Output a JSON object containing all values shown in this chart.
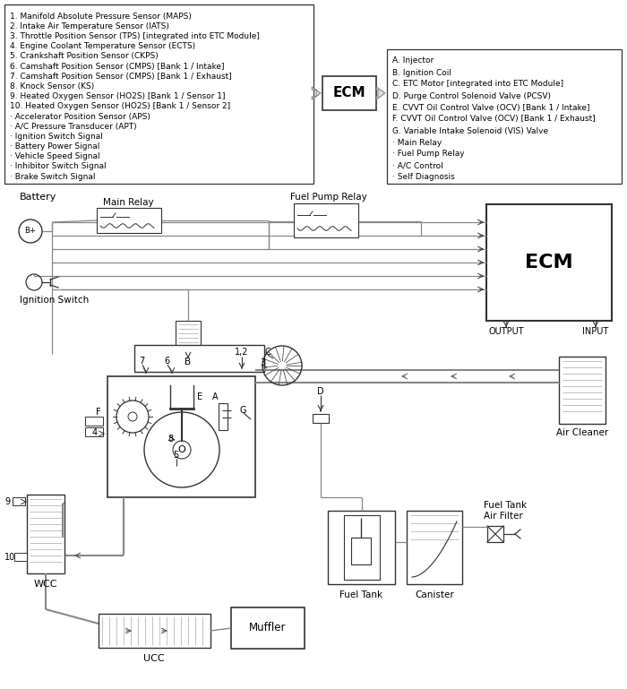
{
  "bg_color": "#ffffff",
  "line_color": "#333333",
  "left_box_lines": [
    "1. Manifold Absolute Pressure Sensor (MAPS)",
    "2. Intake Air Temperature Sensor (IATS)",
    "3. Throttle Position Sensor (TPS) [integrated into ETC Module]",
    "4. Engine Coolant Temperature Sensor (ECTS)",
    "5. Crankshaft Position Sensor (CKPS)",
    "6. Camshaft Position Sensor (CMPS) [Bank 1 / Intake]",
    "7. Camshaft Position Sensor (CMPS) [Bank 1 / Exhaust]",
    "8. Knock Sensor (KS)",
    "9. Heated Oxygen Sensor (HO2S) [Bank 1 / Sensor 1]",
    "10. Heated Oxygen Sensor (HO2S) [Bank 1 / Sensor 2]",
    "· Accelerator Position Sensor (APS)",
    "· A/C Pressure Transducer (APT)",
    "· Ignition Switch Signal",
    "· Battery Power Signal",
    "· Vehicle Speed Signal",
    "· Inhibitor Switch Signal",
    "· Brake Switch Signal"
  ],
  "right_box_lines": [
    "A. Injector",
    "B. Ignition Coil",
    "C. ETC Motor [integrated into ETC Module]",
    "D. Purge Control Solenoid Valve (PCSV)",
    "E. CVVT Oil Control Valve (OCV) [Bank 1 / Intake]",
    "F. CVVT Oil Control Valve (OCV) [Bank 1 / Exhaust]",
    "G. Variable Intake Solenoid (VIS) Valve",
    "· Main Relay",
    "· Fuel Pump Relay",
    "· A/C Control",
    "· Self Diagnosis"
  ]
}
